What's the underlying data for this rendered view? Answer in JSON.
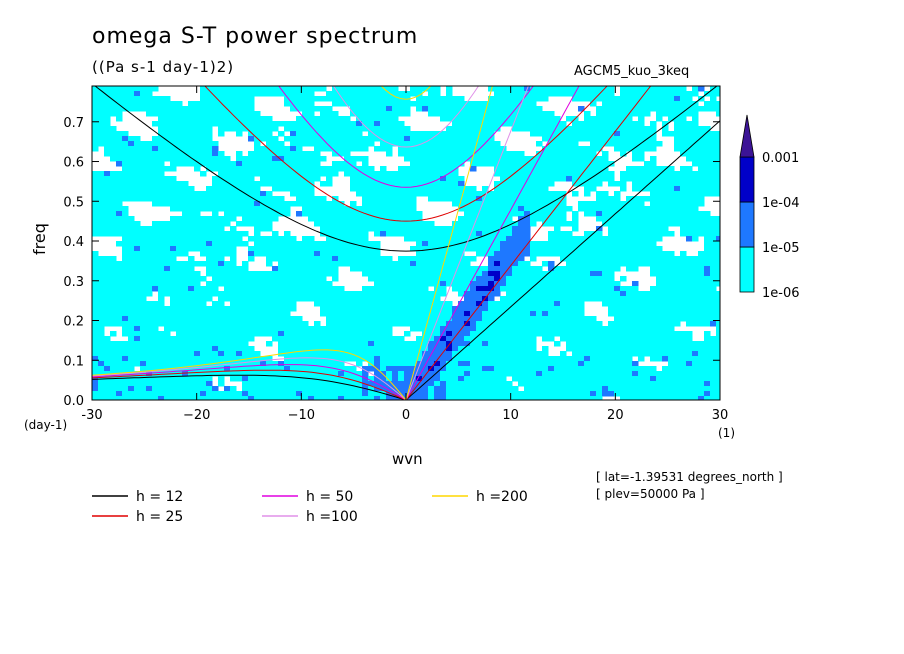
{
  "title": "omega S-T power spectrum",
  "subtitle": "((Pa s-1 day-1)2)",
  "dataset_label": "AGCM5_kuo_3keq",
  "chart_data": {
    "type": "heatmap",
    "xlabel": "wvn",
    "ylabel": "freq",
    "x_unit_label": "(1)",
    "y_unit_label": "(day-1)",
    "xlim": [
      -30,
      30
    ],
    "ylim": [
      0,
      0.79
    ],
    "x_ticks": [
      -30,
      -20,
      -10,
      0,
      10,
      20,
      30
    ],
    "x_tick_labels": [
      "-30",
      "−20",
      "−10",
      "0",
      "10",
      "20",
      "30"
    ],
    "y_ticks": [
      0,
      0.1,
      0.2,
      0.3,
      0.4,
      0.5,
      0.6,
      0.7
    ],
    "y_tick_labels": [
      "0.0",
      "0.1",
      "0.2",
      "0.3",
      "0.4",
      "0.5",
      "0.6",
      "0.7"
    ],
    "colorbar": {
      "levels": [
        1e-06,
        1e-05,
        0.0001,
        0.001
      ],
      "labels": [
        "1e-06",
        "1e-05",
        "1e-04",
        "0.001"
      ],
      "colors": [
        "#00ffff",
        "#1e78ff",
        "#0000c8",
        "#3c1496"
      ]
    },
    "dispersion_curves": [
      {
        "name": "h = 12",
        "h": 12,
        "color": "#000000"
      },
      {
        "name": "h = 25",
        "h": 25,
        "color": "#e00000"
      },
      {
        "name": "h = 50",
        "h": 50,
        "color": "#e000e0"
      },
      {
        "name": "h =100",
        "h": 100,
        "color": "#e090e8"
      },
      {
        "name": "h =200",
        "h": 200,
        "color": "#ffd700"
      }
    ],
    "grid": false,
    "legend_position": "bottom"
  },
  "metadata": [
    "[ lat=-1.39531 degrees_north ]",
    "[ plev=50000 Pa ]"
  ]
}
